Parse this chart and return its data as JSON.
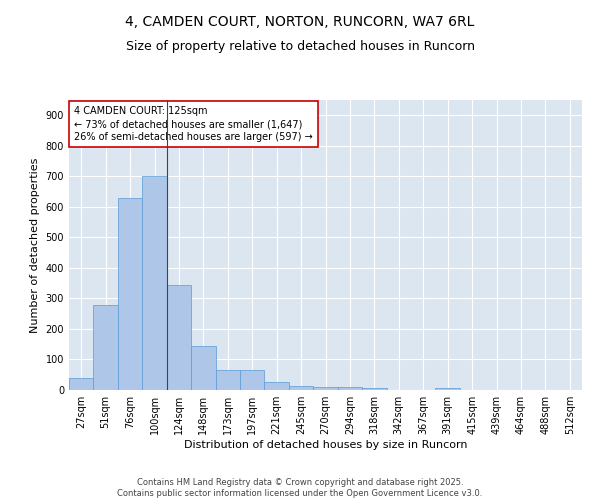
{
  "title_line1": "4, CAMDEN COURT, NORTON, RUNCORN, WA7 6RL",
  "title_line2": "Size of property relative to detached houses in Runcorn",
  "xlabel": "Distribution of detached houses by size in Runcorn",
  "ylabel": "Number of detached properties",
  "categories": [
    "27sqm",
    "51sqm",
    "76sqm",
    "100sqm",
    "124sqm",
    "148sqm",
    "173sqm",
    "197sqm",
    "221sqm",
    "245sqm",
    "270sqm",
    "294sqm",
    "318sqm",
    "342sqm",
    "367sqm",
    "391sqm",
    "415sqm",
    "439sqm",
    "464sqm",
    "488sqm",
    "512sqm"
  ],
  "values": [
    40,
    280,
    630,
    700,
    345,
    145,
    65,
    65,
    25,
    12,
    10,
    10,
    5,
    0,
    0,
    5,
    0,
    0,
    0,
    0,
    0
  ],
  "bar_color": "#aec6e8",
  "bar_edge_color": "#5b9bd5",
  "background_color": "#dce6f1",
  "grid_color": "#ffffff",
  "annotation_line1": "4 CAMDEN COURT: 125sqm",
  "annotation_line2": "← 73% of detached houses are smaller (1,647)",
  "annotation_line3": "26% of semi-detached houses are larger (597) →",
  "annotation_box_color": "#ffffff",
  "annotation_box_edge_color": "#cc0000",
  "vline_x_index": 4.0,
  "ylim": [
    0,
    950
  ],
  "yticks": [
    0,
    100,
    200,
    300,
    400,
    500,
    600,
    700,
    800,
    900
  ],
  "footer_line1": "Contains HM Land Registry data © Crown copyright and database right 2025.",
  "footer_line2": "Contains public sector information licensed under the Open Government Licence v3.0.",
  "title_fontsize": 10,
  "subtitle_fontsize": 9,
  "axis_label_fontsize": 8,
  "tick_fontsize": 7,
  "annotation_fontsize": 7,
  "footer_fontsize": 6
}
